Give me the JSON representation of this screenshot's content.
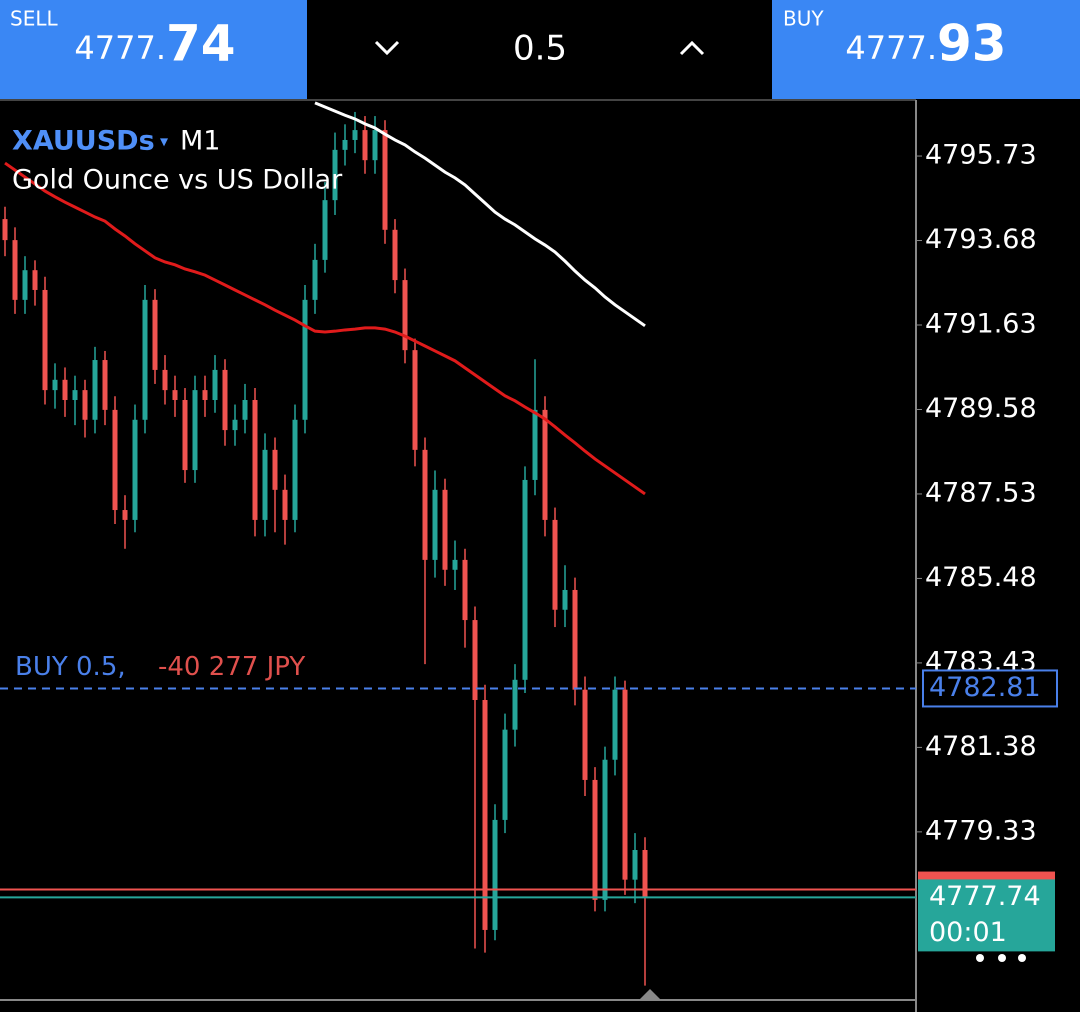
{
  "header": {
    "sell": {
      "label": "SELL",
      "price_main": "4777.",
      "price_big": "74"
    },
    "volume": "0.5",
    "buy": {
      "label": "BUY",
      "price_main": "4777.",
      "price_big": "93"
    }
  },
  "chart_data": {
    "type": "candlestick",
    "symbol": "XAUUSDs",
    "timeframe": "M1",
    "subtitle": "Gold Ounce vs US Dollar",
    "up_color": "#26a69a",
    "down_color": "#ef5350",
    "ylim": [
      4775.25,
      4797.09
    ],
    "yticks": [
      4795.73,
      4793.68,
      4791.63,
      4789.58,
      4787.53,
      4785.48,
      4783.43,
      4781.38,
      4779.33
    ],
    "grid": false,
    "open": [
      4794.2,
      4793.69,
      4792.24,
      4792.96,
      4792.48,
      4790.05,
      4790.3,
      4789.81,
      4790.05,
      4789.33,
      4790.78,
      4789.57,
      4787.14,
      4786.9,
      4789.33,
      4792.24,
      4790.54,
      4790.05,
      4789.81,
      4788.11,
      4790.05,
      4789.81,
      4790.54,
      4789.08,
      4789.33,
      4789.81,
      4786.9,
      4788.6,
      4787.63,
      4786.9,
      4789.33,
      4792.24,
      4793.21,
      4794.66,
      4795.88,
      4796.12,
      4796.36,
      4795.63,
      4796.36,
      4793.94,
      4792.72,
      4791.02,
      4788.6,
      4785.93,
      4787.63,
      4785.69,
      4785.93,
      4784.47,
      4782.53,
      4776.95,
      4779.62,
      4781.81,
      4783.02,
      4787.87,
      4789.57,
      4786.9,
      4784.72,
      4785.2,
      4782.78,
      4780.59,
      4777.68,
      4781.08,
      4782.78,
      4778.17,
      4778.89
    ],
    "high": [
      4794.5,
      4794.0,
      4793.3,
      4793.2,
      4792.8,
      4790.7,
      4790.6,
      4790.4,
      4790.3,
      4791.1,
      4791.0,
      4789.9,
      4787.5,
      4789.7,
      4792.6,
      4792.5,
      4790.9,
      4790.4,
      4790.1,
      4790.4,
      4790.4,
      4790.9,
      4790.8,
      4789.7,
      4790.2,
      4790.1,
      4789.0,
      4788.9,
      4788.0,
      4789.7,
      4792.6,
      4793.6,
      4795.1,
      4796.3,
      4796.5,
      4796.8,
      4796.7,
      4796.7,
      4796.6,
      4794.2,
      4793.0,
      4791.3,
      4788.9,
      4788.1,
      4787.9,
      4786.4,
      4786.2,
      4784.8,
      4782.9,
      4780.0,
      4782.2,
      4783.4,
      4788.2,
      4790.8,
      4789.9,
      4787.2,
      4785.8,
      4785.5,
      4783.1,
      4780.9,
      4781.4,
      4783.1,
      4783.0,
      4779.3,
      4779.2
    ],
    "low": [
      4793.3,
      4791.9,
      4791.9,
      4792.1,
      4789.7,
      4789.6,
      4789.4,
      4789.2,
      4788.9,
      4789.0,
      4789.2,
      4786.8,
      4786.2,
      4786.6,
      4789.0,
      4790.2,
      4789.7,
      4789.4,
      4787.8,
      4787.8,
      4789.4,
      4789.5,
      4788.7,
      4788.7,
      4789.0,
      4786.5,
      4786.5,
      4786.6,
      4786.3,
      4786.6,
      4789.0,
      4791.9,
      4792.9,
      4794.3,
      4795.5,
      4795.8,
      4795.3,
      4795.3,
      4793.6,
      4792.4,
      4790.7,
      4788.2,
      4783.4,
      4785.5,
      4785.3,
      4785.2,
      4783.8,
      4776.5,
      4776.4,
      4776.7,
      4779.3,
      4781.4,
      4782.7,
      4787.5,
      4786.5,
      4784.3,
      4784.3,
      4782.4,
      4780.2,
      4777.4,
      4777.4,
      4780.7,
      4777.8,
      4777.6,
      4775.6
    ],
    "close": [
      4793.69,
      4792.24,
      4792.96,
      4792.48,
      4790.05,
      4790.3,
      4789.81,
      4790.05,
      4789.33,
      4790.78,
      4789.57,
      4787.14,
      4786.9,
      4789.33,
      4792.24,
      4790.54,
      4790.05,
      4789.81,
      4788.11,
      4790.05,
      4789.81,
      4790.54,
      4789.08,
      4789.33,
      4789.81,
      4786.9,
      4788.6,
      4787.63,
      4786.9,
      4789.33,
      4792.24,
      4793.21,
      4794.66,
      4795.88,
      4796.12,
      4796.36,
      4795.63,
      4796.36,
      4793.94,
      4792.72,
      4791.02,
      4788.6,
      4785.93,
      4787.63,
      4785.69,
      4785.93,
      4784.47,
      4782.53,
      4776.95,
      4779.62,
      4781.81,
      4783.02,
      4787.87,
      4789.57,
      4786.9,
      4784.72,
      4785.2,
      4782.78,
      4780.59,
      4777.68,
      4781.08,
      4782.78,
      4778.17,
      4778.89,
      4777.74
    ],
    "series": [
      {
        "color": "#e01b1b",
        "values": [
          4795.56,
          4795.39,
          4795.22,
          4795.05,
          4794.88,
          4794.74,
          4794.61,
          4794.49,
          4794.37,
          4794.25,
          4794.15,
          4793.96,
          4793.79,
          4793.6,
          4793.43,
          4793.26,
          4793.16,
          4793.09,
          4792.99,
          4792.92,
          4792.84,
          4792.72,
          4792.6,
          4792.48,
          4792.36,
          4792.24,
          4792.12,
          4791.99,
          4791.87,
          4791.75,
          4791.61,
          4791.48,
          4791.46,
          4791.48,
          4791.51,
          4791.53,
          4791.56,
          4791.56,
          4791.53,
          4791.46,
          4791.36,
          4791.24,
          4791.12,
          4791.0,
          4790.88,
          4790.76,
          4790.59,
          4790.42,
          4790.25,
          4790.08,
          4789.91,
          4789.79,
          4789.64,
          4789.5,
          4789.35,
          4789.16,
          4788.96,
          4788.77,
          4788.57,
          4788.38,
          4788.21,
          4788.04,
          4787.87,
          4787.7,
          4787.53
        ]
      },
      {
        "color": "#ffffff",
        "values": [
          null,
          null,
          null,
          null,
          null,
          null,
          null,
          null,
          null,
          null,
          null,
          null,
          null,
          null,
          null,
          null,
          null,
          null,
          null,
          null,
          null,
          null,
          null,
          null,
          null,
          null,
          null,
          null,
          null,
          null,
          null,
          4797.02,
          4796.92,
          4796.82,
          4796.72,
          4796.63,
          4796.51,
          4796.41,
          4796.26,
          4796.12,
          4796.0,
          4795.83,
          4795.68,
          4795.51,
          4795.34,
          4795.2,
          4795.03,
          4794.81,
          4794.59,
          4794.37,
          4794.2,
          4794.06,
          4793.89,
          4793.72,
          4793.57,
          4793.4,
          4793.18,
          4792.94,
          4792.72,
          4792.53,
          4792.31,
          4792.12,
          4791.95,
          4791.78,
          4791.61
        ]
      }
    ],
    "position": {
      "label": "BUY 0.5,",
      "profit": "-40 277 JPY",
      "price": 4782.81,
      "color": "#4a80ea",
      "profit_color": "#e0504d"
    },
    "ask": 4777.93,
    "ask_color": "#ef5350",
    "bid": 4777.74,
    "bid_color": "#26a69a",
    "timer": "00:01"
  }
}
